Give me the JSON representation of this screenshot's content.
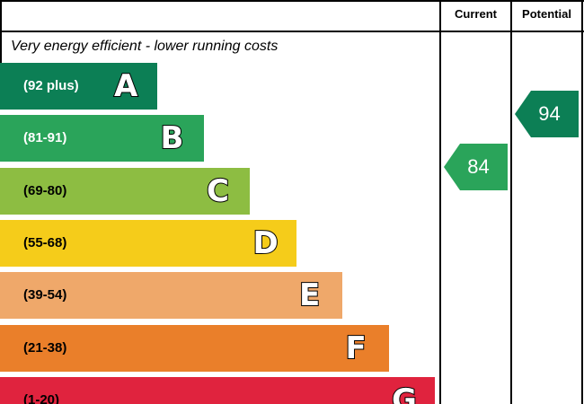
{
  "chart_data": {
    "type": "bar",
    "header": {
      "current_label": "Current",
      "potential_label": "Potential"
    },
    "top_text": "Very energy efficient - lower running costs",
    "bands": [
      {
        "letter": "A",
        "range": "(92 plus)",
        "min": 92,
        "max": 100,
        "color": "#0c7f55",
        "light": true
      },
      {
        "letter": "B",
        "range": "(81-91)",
        "min": 81,
        "max": 91,
        "color": "#2aa45a",
        "light": true
      },
      {
        "letter": "C",
        "range": "(69-80)",
        "min": 69,
        "max": 80,
        "color": "#8dbd42",
        "light": false
      },
      {
        "letter": "D",
        "range": "(55-68)",
        "min": 55,
        "max": 68,
        "color": "#f5cc1a",
        "light": false
      },
      {
        "letter": "E",
        "range": "(39-54)",
        "min": 39,
        "max": 54,
        "color": "#efa86a",
        "light": false
      },
      {
        "letter": "F",
        "range": "(21-38)",
        "min": 21,
        "max": 38,
        "color": "#ea7f2a",
        "light": false
      },
      {
        "letter": "G",
        "range": "(1-20)",
        "min": 1,
        "max": 20,
        "color": "#e0233e",
        "light": false
      }
    ],
    "ratings": {
      "current": {
        "value": 84,
        "label": "84",
        "band": "B",
        "color": "#2aa45a"
      },
      "potential": {
        "value": 94,
        "label": "94",
        "band": "A",
        "color": "#0c7f55"
      }
    }
  }
}
